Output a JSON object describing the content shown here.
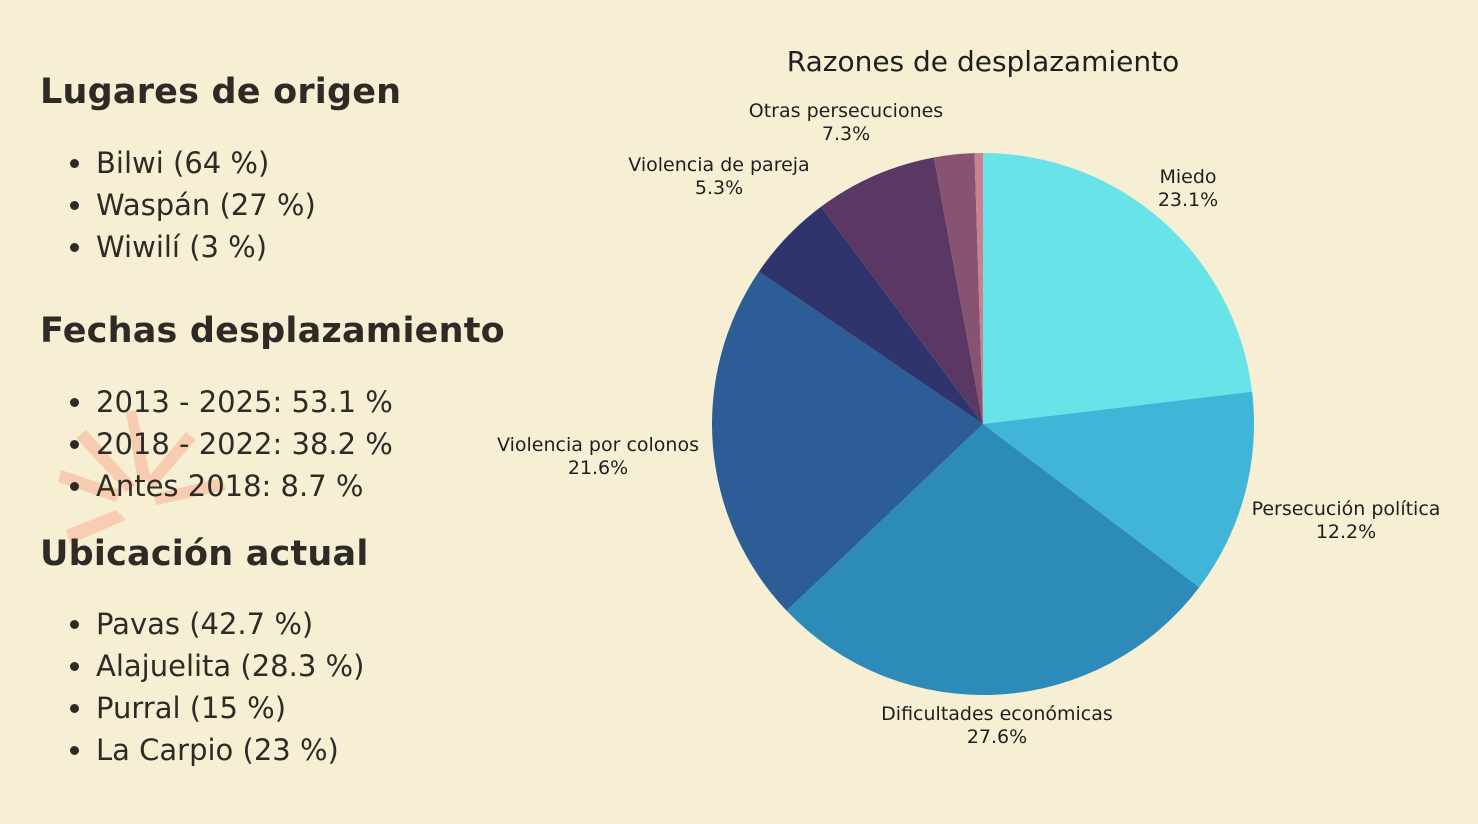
{
  "left_panel": {
    "origin": {
      "title": "Lugares de origen",
      "items": [
        "Bilwi (64 %)",
        "Waspán (27 %)",
        "Wiwilí (3 %)"
      ]
    },
    "dates": {
      "title": "Fechas desplazamiento",
      "items": [
        "2013 - 2025: 53.1 %",
        "2018 - 2022: 38.2 %",
        "Antes 2018: 8.7 %"
      ]
    },
    "location": {
      "title": "Ubicación actual",
      "items": [
        "Pavas (42.7 %)",
        "Alajuelita (28.3 %)",
        "Purral (15 %)",
        "La Carpio (23 %)"
      ]
    }
  },
  "chart_data": {
    "type": "pie",
    "title": "Razones de desplazamiento",
    "start_angle_deg": 0,
    "direction": "clockwise",
    "slices": [
      {
        "label": "Miedo",
        "value": 23.1,
        "pct": "23.1%",
        "color": "#68e3e8"
      },
      {
        "label": "Persecución política",
        "value": 12.2,
        "pct": "12.2%",
        "color": "#40b5d7"
      },
      {
        "label": "Dificultades económicas",
        "value": 27.6,
        "pct": "27.6%",
        "color": "#2d8bba"
      },
      {
        "label": "Violencia por colonos",
        "value": 21.6,
        "pct": "21.6%",
        "color": "#2d5d96"
      },
      {
        "label": "Violencia de pareja",
        "value": 5.3,
        "pct": "5.3%",
        "color": "#30346c"
      },
      {
        "label": "Otras persecuciones",
        "value": 7.3,
        "pct": "7.3%",
        "color": "#5b3763"
      },
      {
        "label": "",
        "value": 2.4,
        "pct": "",
        "color": "#875373"
      },
      {
        "label": "",
        "value": 0.5,
        "pct": "",
        "color": "#c9808f"
      }
    ]
  }
}
